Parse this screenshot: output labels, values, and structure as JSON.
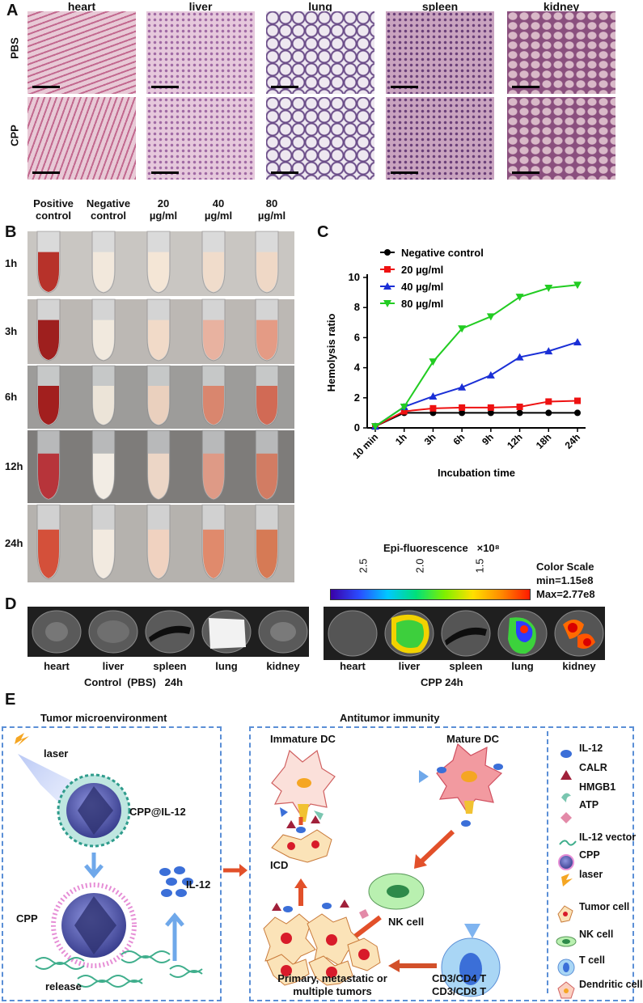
{
  "panel_a": {
    "label": "A",
    "columns": [
      "heart",
      "liver",
      "lung",
      "spleen",
      "kidney"
    ],
    "rows": [
      "PBS",
      "CPP"
    ]
  },
  "panel_b": {
    "label": "B",
    "headers": [
      {
        "line1": "Positive",
        "line2": "control"
      },
      {
        "line1": "Negative",
        "line2": "control"
      },
      {
        "line1": "20",
        "line2": "µg/ml"
      },
      {
        "line1": "40",
        "line2": "µg/ml"
      },
      {
        "line1": "80",
        "line2": "µg/ml"
      }
    ],
    "times": [
      "1h",
      "3h",
      "6h",
      "12h",
      "24h"
    ]
  },
  "chart_data": {
    "type": "line",
    "panel_label": "C",
    "categories": [
      "10 min",
      "1h",
      "3h",
      "6h",
      "9h",
      "12h",
      "18h",
      "24h"
    ],
    "series": [
      {
        "name": "Negative  control",
        "color": "#000000",
        "marker": "circle",
        "values": [
          0.1,
          1.0,
          1.0,
          1.0,
          1.0,
          1.0,
          1.0,
          1.0
        ]
      },
      {
        "name": "20 µg/ml",
        "color": "#ee1111",
        "marker": "square",
        "values": [
          0.1,
          1.1,
          1.3,
          1.35,
          1.35,
          1.4,
          1.75,
          1.8
        ]
      },
      {
        "name": "40 µg/ml",
        "color": "#1a2fd6",
        "marker": "triangle-up",
        "values": [
          0.1,
          1.4,
          2.1,
          2.7,
          3.5,
          4.7,
          5.1,
          5.7
        ]
      },
      {
        "name": "80 µg/ml",
        "color": "#22cc22",
        "marker": "triangle-down",
        "values": [
          0.1,
          1.4,
          4.4,
          6.6,
          7.4,
          8.7,
          9.3,
          9.5
        ]
      }
    ],
    "ylabel": "Hemolysis ratio",
    "xlabel": "Incubation time",
    "ylim": [
      0,
      10
    ],
    "yticks": [
      "0",
      "2",
      "4",
      "6",
      "8",
      "10"
    ]
  },
  "panel_d": {
    "label": "D",
    "scale_title": "Epi-fluorescence",
    "scale_unit": "×10⁸",
    "scale_ticks": [
      "2.5",
      "2.0",
      "1.5"
    ],
    "color_scale_title": "Color Scale",
    "color_min": "min=1.15e8",
    "color_max": "Max=2.77e8",
    "organs": [
      "heart",
      "liver",
      "spleen",
      "lung",
      "kidney"
    ],
    "control_caption": "Control  (PBS)   24h",
    "cpp_caption": "CPP  24h"
  },
  "panel_e": {
    "label": "E",
    "left_title": "Tumor microenvironment",
    "right_title": "Antitumor immunity",
    "laser": "laser",
    "cpp_il12": "CPP@IL-12",
    "cpp": "CPP",
    "il12": "IL-12",
    "release": "release",
    "immature_dc": "Immature DC",
    "mature_dc": "Mature DC",
    "icd": "ICD",
    "nk_cell": "NK cell",
    "tumors_line1": "Primary, metastatic or",
    "tumors_line2": "multiple tumors",
    "t_line1": "CD3/CD4 T",
    "t_line2": "CD3/CD8 T",
    "legend": [
      "IL-12",
      "CALR",
      "HMGB1",
      "ATP",
      "IL-12 vector",
      "CPP",
      "laser",
      "Tumor cell",
      "NK cell",
      "T cell",
      "Dendritic cell"
    ],
    "colors": {
      "box": "#5b8fd6",
      "tumor": "#fbe3b8",
      "nucleus": "#d81b2a",
      "il12": "#3b6fd8",
      "nk": "#b9f0b0",
      "tcell": "#a9d6f5"
    }
  }
}
